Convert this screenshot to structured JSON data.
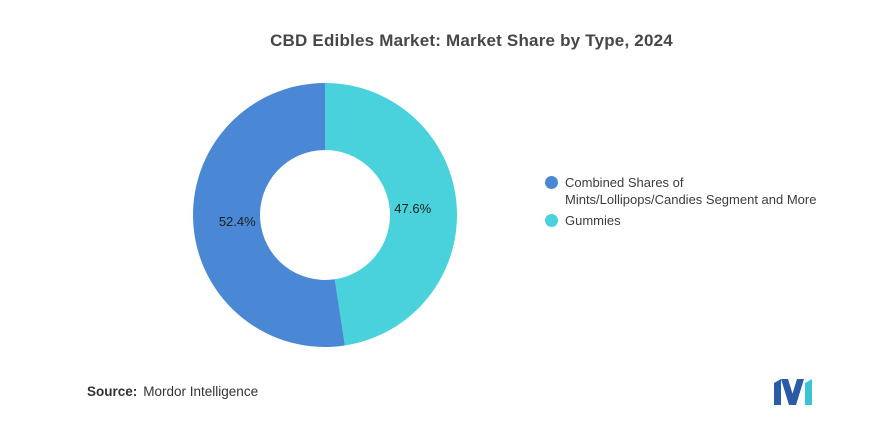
{
  "title": "CBD Edibles Market: Market Share by Type, 2024",
  "chart_data": {
    "type": "pie",
    "subtype": "donut",
    "title": "CBD Edibles Market: Market Share by Type, 2024",
    "start_angle_deg": 0,
    "direction": "clockwise",
    "legend_position": "right",
    "data_label_color": "#1f1f1f",
    "slices": [
      {
        "name": "Gummies",
        "value": 47.6,
        "data_label": "47.6%",
        "color": "#49D2DB"
      },
      {
        "name": "Combined Shares of Mints/Lollipops/Candies Segment and More",
        "value": 52.4,
        "data_label": "52.4%",
        "color": "#4A87D5"
      }
    ]
  },
  "legend": {
    "items": [
      {
        "lines": [
          "Combined Shares of",
          "Mints/Lollipops/Candies Segment and More"
        ],
        "color": "#4A87D5"
      },
      {
        "lines": [
          "Gummies"
        ],
        "color": "#49D2DB"
      }
    ]
  },
  "source": {
    "label": "Source:",
    "value": "Mordor Intelligence"
  },
  "logo": {
    "name": "mordor-intelligence-logo",
    "blue": "#2A5BA8",
    "teal": "#3BC4D8"
  }
}
